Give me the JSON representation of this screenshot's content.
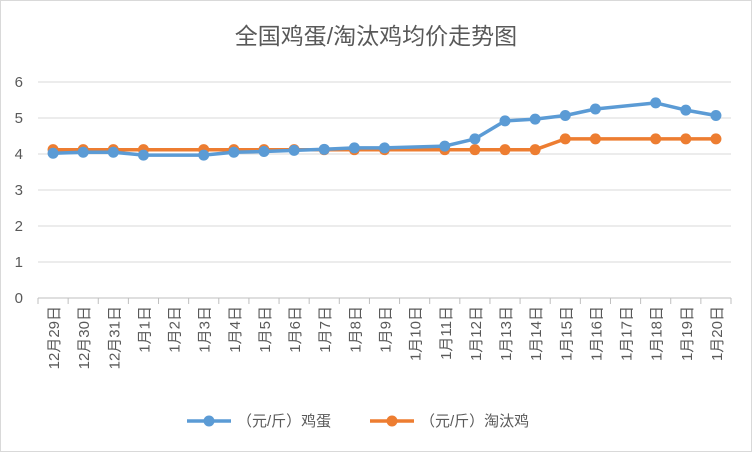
{
  "chart_data": {
    "type": "line",
    "title": "全国鸡蛋/淘汰鸡均价走势图",
    "xlabel": "",
    "ylabel": "",
    "ylim": [
      0,
      6
    ],
    "yticks": [
      "0",
      "1",
      "2",
      "3",
      "4",
      "5",
      "6"
    ],
    "grid": "horizontal",
    "legend_position": "bottom",
    "categories": [
      "12月29日",
      "12月30日",
      "12月31日",
      "1月1日",
      "1月2日",
      "1月3日",
      "1月4日",
      "1月5日",
      "1月6日",
      "1月7日",
      "1月8日",
      "1月9日",
      "1月10日",
      "1月11日",
      "1月12日",
      "1月13日",
      "1月14日",
      "1月15日",
      "1月16日",
      "1月17日",
      "1月18日",
      "1月19日",
      "1月20日"
    ],
    "series": [
      {
        "name": "（元/斤）鸡蛋",
        "color": "#5b9bd5",
        "values": [
          4.02,
          4.05,
          4.05,
          3.97,
          null,
          3.97,
          4.05,
          4.07,
          4.1,
          4.13,
          4.17,
          4.17,
          null,
          4.22,
          4.42,
          4.92,
          4.97,
          5.07,
          5.25,
          null,
          5.42,
          5.22,
          5.07
        ]
      },
      {
        "name": "（元/斤）淘汰鸡",
        "color": "#ed7d31",
        "values": [
          4.12,
          4.12,
          4.12,
          4.12,
          null,
          4.12,
          4.12,
          4.12,
          4.12,
          4.12,
          4.12,
          4.12,
          null,
          4.12,
          4.12,
          4.12,
          4.12,
          4.42,
          4.42,
          null,
          4.42,
          4.42,
          4.42
        ]
      }
    ]
  }
}
